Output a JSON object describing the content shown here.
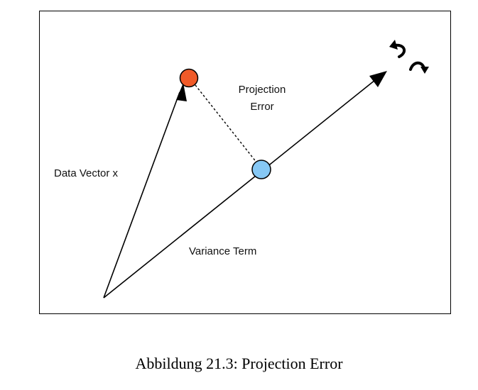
{
  "diagram": {
    "labels": {
      "projection_error_line1": "Projection",
      "projection_error_line2": "Error",
      "data_vector": "Data Vector x",
      "variance_term": "Variance Term"
    },
    "colors": {
      "data_point": "#f05a28",
      "projection_point": "#86c8f5",
      "stroke": "#000000"
    },
    "icons": {
      "rotation": "rotate-arrows-icon"
    }
  },
  "caption": "Abbildung 21.3: Projection Error"
}
